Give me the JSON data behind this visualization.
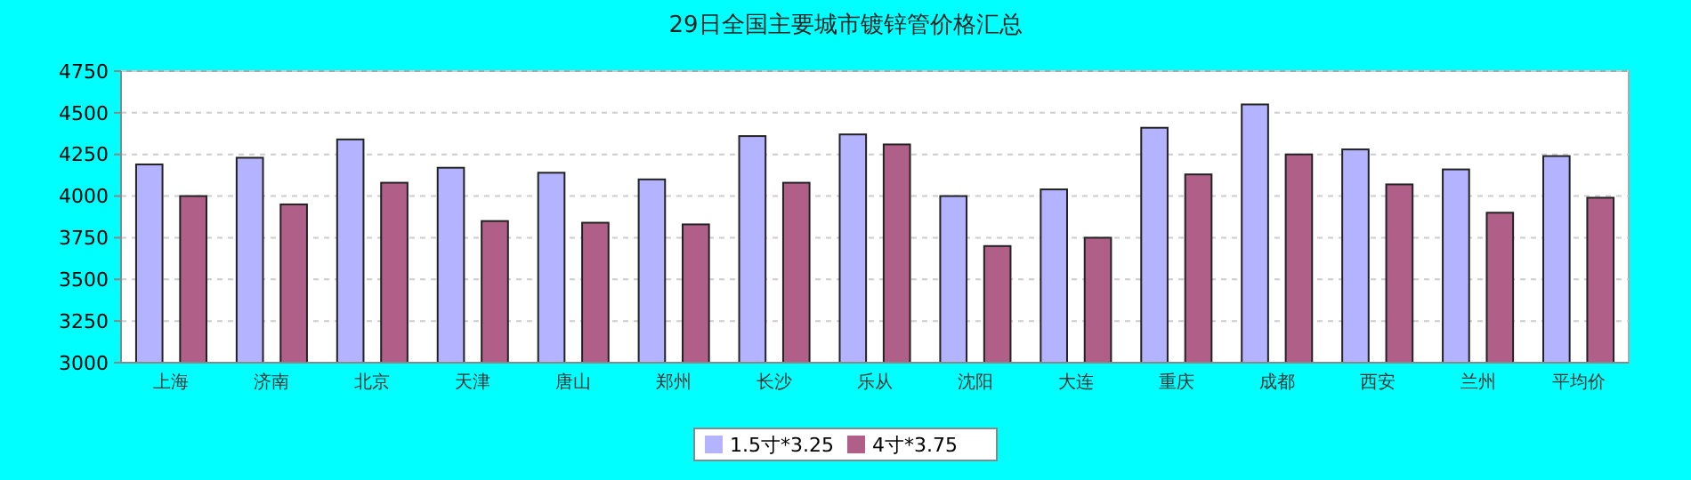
{
  "chart_data": {
    "type": "bar",
    "title": "29日全国主要城市镀锌管价格汇总",
    "categories": [
      "上海",
      "济南",
      "北京",
      "天津",
      "唐山",
      "郑州",
      "长沙",
      "乐从",
      "沈阳",
      "大连",
      "重庆",
      "成都",
      "西安",
      "兰州",
      "平均价"
    ],
    "series": [
      {
        "name": "1.5寸*3.25",
        "color": "#b3b3ff",
        "values": [
          4190,
          4230,
          4340,
          4170,
          4140,
          4100,
          4360,
          4370,
          4000,
          4040,
          4410,
          4550,
          4280,
          4160,
          4240
        ]
      },
      {
        "name": "4寸*3.75",
        "color": "#b06088",
        "values": [
          4000,
          3950,
          4080,
          3850,
          3840,
          3830,
          4080,
          4310,
          3700,
          3750,
          4130,
          4250,
          4070,
          3900,
          3990
        ]
      }
    ],
    "ylim": [
      3000,
      4750
    ],
    "yticks": [
      3000,
      3250,
      3500,
      3750,
      4000,
      4250,
      4500,
      4750
    ],
    "grid": "y",
    "legend": "bottom"
  }
}
